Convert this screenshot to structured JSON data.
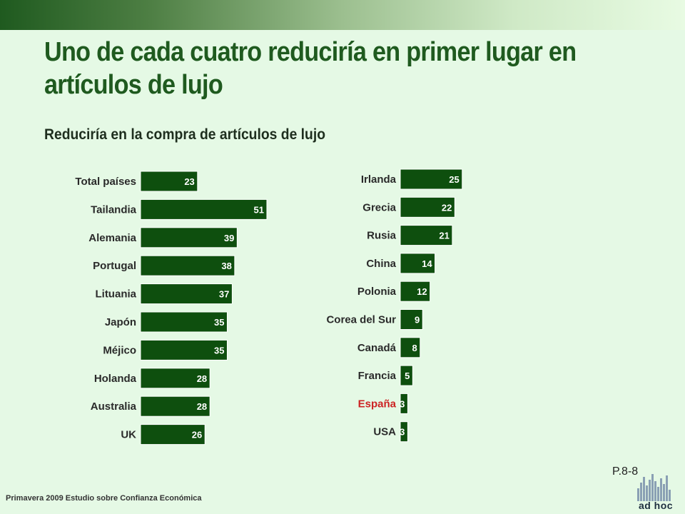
{
  "header": {
    "title": "Uno de cada cuatro reduciría en primer lugar en artículos de lujo",
    "subtitle": "Reduciría en la compra de artículos de lujo"
  },
  "colors": {
    "bar": "#0e4f0e",
    "highlight_label": "#cc2222",
    "title": "#1f5a1f"
  },
  "chart_data": [
    {
      "type": "bar",
      "orientation": "horizontal",
      "categories": [
        "Total países",
        "Tailandia",
        "Alemania",
        "Portugal",
        "Lituania",
        "Japón",
        "Méjico",
        "Holanda",
        "Australia",
        "UK"
      ],
      "values": [
        23,
        51,
        39,
        38,
        37,
        35,
        35,
        28,
        28,
        26
      ],
      "title": "",
      "xlabel": "",
      "ylabel": "",
      "xlim": [
        0,
        51
      ]
    },
    {
      "type": "bar",
      "orientation": "horizontal",
      "categories": [
        "Irlanda",
        "Grecia",
        "Rusia",
        "China",
        "Polonia",
        "Corea del Sur",
        "Canadá",
        "Francia",
        "España",
        "USA"
      ],
      "values": [
        25,
        22,
        21,
        14,
        12,
        9,
        8,
        5,
        3,
        3
      ],
      "highlight": [
        "España"
      ],
      "title": "",
      "xlabel": "",
      "ylabel": "",
      "xlim": [
        0,
        51
      ]
    }
  ],
  "footer": {
    "page_number": "P.8-8",
    "source": "Primavera 2009 Estudio sobre Confianza Económica",
    "logo_text": "ad hoc"
  }
}
